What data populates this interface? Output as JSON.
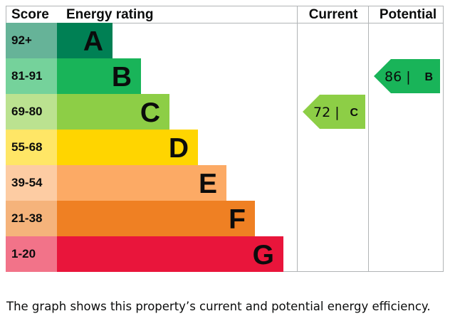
{
  "chart_data": {
    "type": "energy-rating",
    "headers": {
      "score": "Score",
      "rating": "Energy rating",
      "current": "Current",
      "potential": "Potential"
    },
    "bands": [
      {
        "letter": "A",
        "range": "92+",
        "color": "#008054",
        "score_color": "#66b398"
      },
      {
        "letter": "B",
        "range": "81-91",
        "color": "#19b459",
        "score_color": "#75d29b"
      },
      {
        "letter": "C",
        "range": "69-80",
        "color": "#8dce46",
        "score_color": "#bbe290"
      },
      {
        "letter": "D",
        "range": "55-68",
        "color": "#ffd500",
        "score_color": "#ffe666"
      },
      {
        "letter": "E",
        "range": "39-54",
        "color": "#fcaa65",
        "score_color": "#fdcca3"
      },
      {
        "letter": "F",
        "range": "21-38",
        "color": "#ef8023",
        "score_color": "#f5b37b"
      },
      {
        "letter": "G",
        "range": "1-20",
        "color": "#e9153b",
        "score_color": "#f27389"
      }
    ],
    "current": {
      "value": 72,
      "band": "C",
      "text": "72 |",
      "color": "#8dce46"
    },
    "potential": {
      "value": 86,
      "band": "B",
      "text": "86 |",
      "color": "#19b459"
    }
  },
  "caption": "The graph shows this property’s current and potential energy efficiency."
}
